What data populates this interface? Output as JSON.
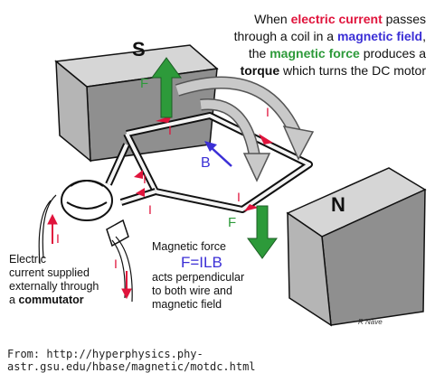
{
  "title_text": {
    "p1": "When ",
    "p2": "electric current",
    "p3": " passes through a  coil in a ",
    "p4": "magnetic field",
    "p5": ", the ",
    "p6": "magnetic force",
    "p7": " produces a ",
    "p8": "torque",
    "p9": " which turns the DC motor"
  },
  "poles": {
    "south": "S",
    "north": "N"
  },
  "labels": {
    "force": "F",
    "field": "B",
    "current": "I"
  },
  "magnetic_force_note": {
    "heading": "Magnetic force",
    "formula": "F=ILB",
    "line1": "acts perpendicular",
    "line2": "to both wire and",
    "line3": "magnetic field"
  },
  "electric_note": {
    "line1": "Electric",
    "line2": "current supplied",
    "line3": "externally through",
    "line4": "a ",
    "bold": "commutator"
  },
  "credit": "R Nave",
  "source": "From:  http://hyperphysics.phy-astr.gsu.edu/hbase/magnetic/motdc.html",
  "colors": {
    "current": "#e0143c",
    "field": "#3b2fd6",
    "force": "#2d9a3a",
    "magnet": "#8a8a8a"
  }
}
